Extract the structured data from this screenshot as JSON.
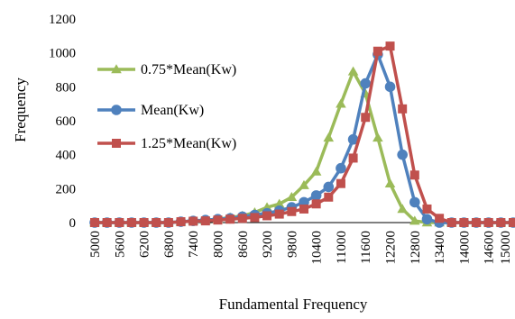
{
  "chart_data": {
    "type": "line",
    "xlabel": "Fundamental Frequency",
    "ylabel": "Frequency",
    "ylim": [
      0,
      1200
    ],
    "yticks": [
      0,
      200,
      400,
      600,
      800,
      1000,
      1200
    ],
    "xlim": [
      5000,
      15200
    ],
    "xticks": [
      5000,
      5600,
      6200,
      6800,
      7400,
      8000,
      8600,
      9200,
      9800,
      10400,
      11000,
      11600,
      12200,
      12800,
      13400,
      14000,
      14600,
      15000
    ],
    "grid": false,
    "legend_position": "left",
    "series": [
      {
        "name": "0.75*Mean(Kw)",
        "color": "#9bbb59",
        "marker": "triangle",
        "x": [
          5000,
          5300,
          5600,
          5900,
          6200,
          6500,
          6800,
          7100,
          7400,
          7700,
          8000,
          8300,
          8600,
          8900,
          9200,
          9500,
          9800,
          10100,
          10400,
          10700,
          11000,
          11300,
          11600,
          11900,
          12200,
          12500,
          12800,
          13100,
          13400,
          13700,
          14000,
          14300,
          14600,
          14900,
          15200
        ],
        "y": [
          0,
          0,
          0,
          0,
          0,
          0,
          0,
          5,
          10,
          15,
          20,
          30,
          40,
          60,
          90,
          110,
          150,
          220,
          300,
          500,
          700,
          890,
          760,
          500,
          230,
          80,
          10,
          0,
          0,
          0,
          0,
          0,
          0,
          0,
          0
        ]
      },
      {
        "name": "Mean(Kw)",
        "color": "#4f81bd",
        "marker": "circle",
        "x": [
          5000,
          5300,
          5600,
          5900,
          6200,
          6500,
          6800,
          7100,
          7400,
          7700,
          8000,
          8300,
          8600,
          8900,
          9200,
          9500,
          9800,
          10100,
          10400,
          10700,
          11000,
          11300,
          11600,
          11900,
          12200,
          12500,
          12800,
          13100,
          13400,
          13700,
          14000,
          14300,
          14600,
          14900,
          15200
        ],
        "y": [
          0,
          0,
          0,
          0,
          0,
          0,
          0,
          5,
          10,
          15,
          20,
          25,
          35,
          45,
          55,
          70,
          90,
          120,
          160,
          210,
          320,
          490,
          820,
          990,
          800,
          400,
          120,
          20,
          0,
          0,
          0,
          0,
          0,
          0,
          0
        ]
      },
      {
        "name": "1.25*Mean(Kw)",
        "color": "#c0504d",
        "marker": "square",
        "x": [
          5000,
          5300,
          5600,
          5900,
          6200,
          6500,
          6800,
          7100,
          7400,
          7700,
          8000,
          8300,
          8600,
          8900,
          9200,
          9500,
          9800,
          10100,
          10400,
          10700,
          11000,
          11300,
          11600,
          11900,
          12200,
          12500,
          12800,
          13100,
          13400,
          13700,
          14000,
          14300,
          14600,
          14900,
          15200
        ],
        "y": [
          0,
          0,
          0,
          0,
          0,
          0,
          0,
          5,
          8,
          10,
          15,
          20,
          25,
          30,
          40,
          50,
          65,
          80,
          110,
          150,
          230,
          380,
          620,
          1010,
          1040,
          670,
          280,
          80,
          25,
          0,
          0,
          0,
          0,
          0,
          0
        ]
      }
    ]
  }
}
